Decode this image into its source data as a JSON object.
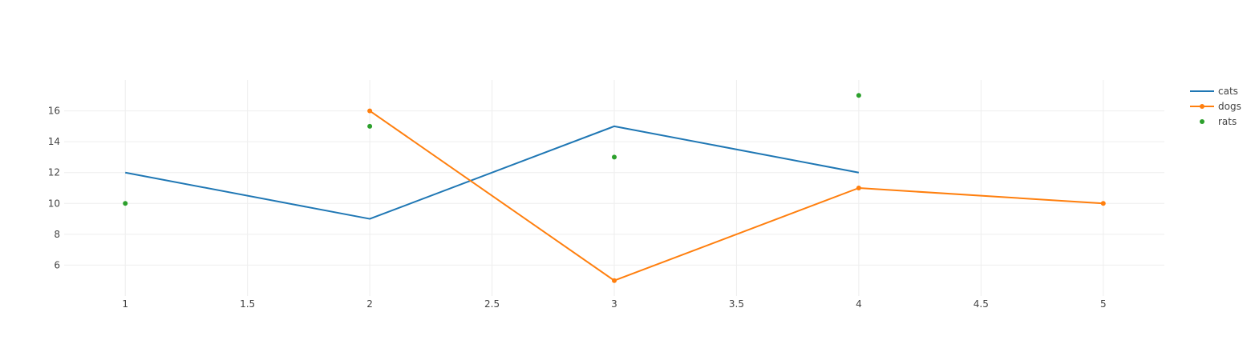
{
  "chart_data": {
    "type": "line",
    "title": "",
    "xlabel": "",
    "ylabel": "",
    "xlim": [
      0.75,
      5.25
    ],
    "ylim": [
      4,
      18
    ],
    "x_ticks": [
      1,
      1.5,
      2,
      2.5,
      3,
      3.5,
      4,
      4.5,
      5
    ],
    "x_tick_labels": [
      "1",
      "1.5",
      "2",
      "2.5",
      "3",
      "3.5",
      "4",
      "4.5",
      "5"
    ],
    "y_ticks": [
      6,
      8,
      10,
      12,
      14,
      16
    ],
    "y_tick_labels": [
      "6",
      "8",
      "10",
      "12",
      "14",
      "16"
    ],
    "grid": true,
    "legend_position": "top-right",
    "series": [
      {
        "name": "cats",
        "mode": "lines",
        "color": "#1f77b4",
        "x": [
          1,
          2,
          3,
          4
        ],
        "y": [
          12,
          9,
          15,
          12
        ]
      },
      {
        "name": "dogs",
        "mode": "lines+markers",
        "color": "#ff7f0e",
        "x": [
          2,
          3,
          4,
          5
        ],
        "y": [
          16,
          5,
          11,
          10
        ]
      },
      {
        "name": "rats",
        "mode": "markers",
        "color": "#2ca02c",
        "x": [
          1,
          2,
          3,
          4
        ],
        "y": [
          10,
          15,
          13,
          17
        ]
      }
    ]
  }
}
